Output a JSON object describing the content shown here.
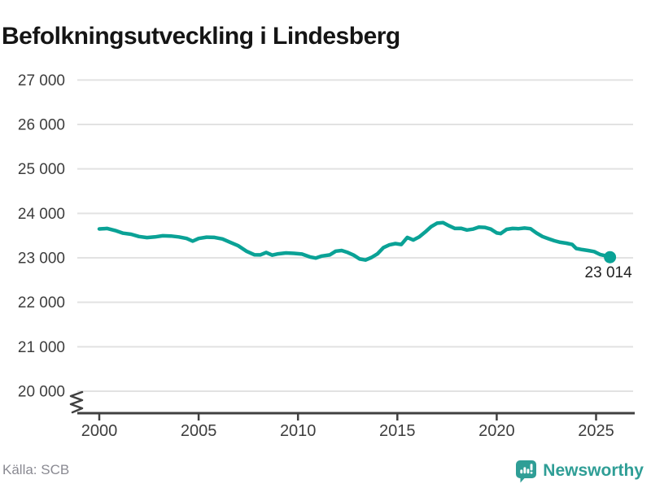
{
  "title": "Befolkningsutveckling i Lindesberg",
  "footer": {
    "source": "Källa: SCB",
    "brand": "Newsworthy"
  },
  "colors": {
    "line": "#0aa296",
    "marker": "#0aa296",
    "grid": "#e2e2e2",
    "axis": "#404040",
    "axis_text": "#3d3d3d",
    "title_text": "#151515",
    "source_text": "#8a8a92",
    "brand": "#2f9e96",
    "end_label_text": "#222222"
  },
  "chart_data": {
    "type": "line",
    "title": "Befolkningsutveckling i Lindesberg",
    "xlabel": "",
    "ylabel": "",
    "grid": "horizontal",
    "legend": "none",
    "axis_break_below_min": true,
    "ylim": [
      20000,
      27000
    ],
    "xlim": [
      1998.9,
      2026.9
    ],
    "y_ticks": [
      {
        "value": 20000,
        "label": "20 000"
      },
      {
        "value": 21000,
        "label": "21 000"
      },
      {
        "value": 22000,
        "label": "22 000"
      },
      {
        "value": 23000,
        "label": "23 000"
      },
      {
        "value": 24000,
        "label": "24 000"
      },
      {
        "value": 25000,
        "label": "25 000"
      },
      {
        "value": 26000,
        "label": "26 000"
      },
      {
        "value": 27000,
        "label": "27 000"
      }
    ],
    "x_ticks": [
      {
        "value": 2000,
        "label": "2000"
      },
      {
        "value": 2005,
        "label": "2005"
      },
      {
        "value": 2010,
        "label": "2010"
      },
      {
        "value": 2015,
        "label": "2015"
      },
      {
        "value": 2020,
        "label": "2020"
      },
      {
        "value": 2025,
        "label": "2025"
      }
    ],
    "series": [
      {
        "name": "Befolkning i Lindesberg",
        "points": [
          [
            2000.0,
            23650
          ],
          [
            2000.4,
            23660
          ],
          [
            2000.8,
            23615
          ],
          [
            2001.2,
            23555
          ],
          [
            2001.6,
            23530
          ],
          [
            2002.0,
            23480
          ],
          [
            2002.4,
            23455
          ],
          [
            2002.8,
            23470
          ],
          [
            2003.2,
            23495
          ],
          [
            2003.6,
            23490
          ],
          [
            2004.0,
            23470
          ],
          [
            2004.4,
            23435
          ],
          [
            2004.7,
            23375
          ],
          [
            2005.0,
            23435
          ],
          [
            2005.4,
            23465
          ],
          [
            2005.8,
            23460
          ],
          [
            2006.2,
            23425
          ],
          [
            2006.6,
            23345
          ],
          [
            2007.0,
            23270
          ],
          [
            2007.4,
            23150
          ],
          [
            2007.8,
            23070
          ],
          [
            2008.1,
            23065
          ],
          [
            2008.4,
            23120
          ],
          [
            2008.7,
            23060
          ],
          [
            2009.0,
            23090
          ],
          [
            2009.4,
            23110
          ],
          [
            2009.8,
            23100
          ],
          [
            2010.2,
            23085
          ],
          [
            2010.6,
            23020
          ],
          [
            2010.9,
            22995
          ],
          [
            2011.2,
            23040
          ],
          [
            2011.6,
            23065
          ],
          [
            2011.9,
            23150
          ],
          [
            2012.2,
            23165
          ],
          [
            2012.5,
            23120
          ],
          [
            2012.8,
            23060
          ],
          [
            2013.1,
            22975
          ],
          [
            2013.4,
            22950
          ],
          [
            2013.7,
            23010
          ],
          [
            2014.0,
            23090
          ],
          [
            2014.3,
            23230
          ],
          [
            2014.6,
            23290
          ],
          [
            2014.9,
            23320
          ],
          [
            2015.2,
            23300
          ],
          [
            2015.5,
            23460
          ],
          [
            2015.8,
            23400
          ],
          [
            2016.1,
            23470
          ],
          [
            2016.4,
            23580
          ],
          [
            2016.7,
            23700
          ],
          [
            2017.0,
            23780
          ],
          [
            2017.3,
            23790
          ],
          [
            2017.6,
            23720
          ],
          [
            2017.9,
            23660
          ],
          [
            2018.2,
            23665
          ],
          [
            2018.5,
            23625
          ],
          [
            2018.8,
            23645
          ],
          [
            2019.1,
            23690
          ],
          [
            2019.4,
            23685
          ],
          [
            2019.7,
            23645
          ],
          [
            2020.0,
            23560
          ],
          [
            2020.2,
            23545
          ],
          [
            2020.5,
            23640
          ],
          [
            2020.8,
            23660
          ],
          [
            2021.1,
            23655
          ],
          [
            2021.4,
            23670
          ],
          [
            2021.7,
            23655
          ],
          [
            2022.0,
            23560
          ],
          [
            2022.3,
            23480
          ],
          [
            2022.6,
            23430
          ],
          [
            2022.9,
            23385
          ],
          [
            2023.2,
            23350
          ],
          [
            2023.5,
            23330
          ],
          [
            2023.8,
            23300
          ],
          [
            2024.0,
            23210
          ],
          [
            2024.3,
            23185
          ],
          [
            2024.6,
            23165
          ],
          [
            2024.9,
            23140
          ],
          [
            2025.2,
            23075
          ],
          [
            2025.45,
            23050
          ],
          [
            2025.7,
            23014
          ]
        ]
      }
    ],
    "end_label": {
      "text": "23 014",
      "value": 23014
    }
  }
}
